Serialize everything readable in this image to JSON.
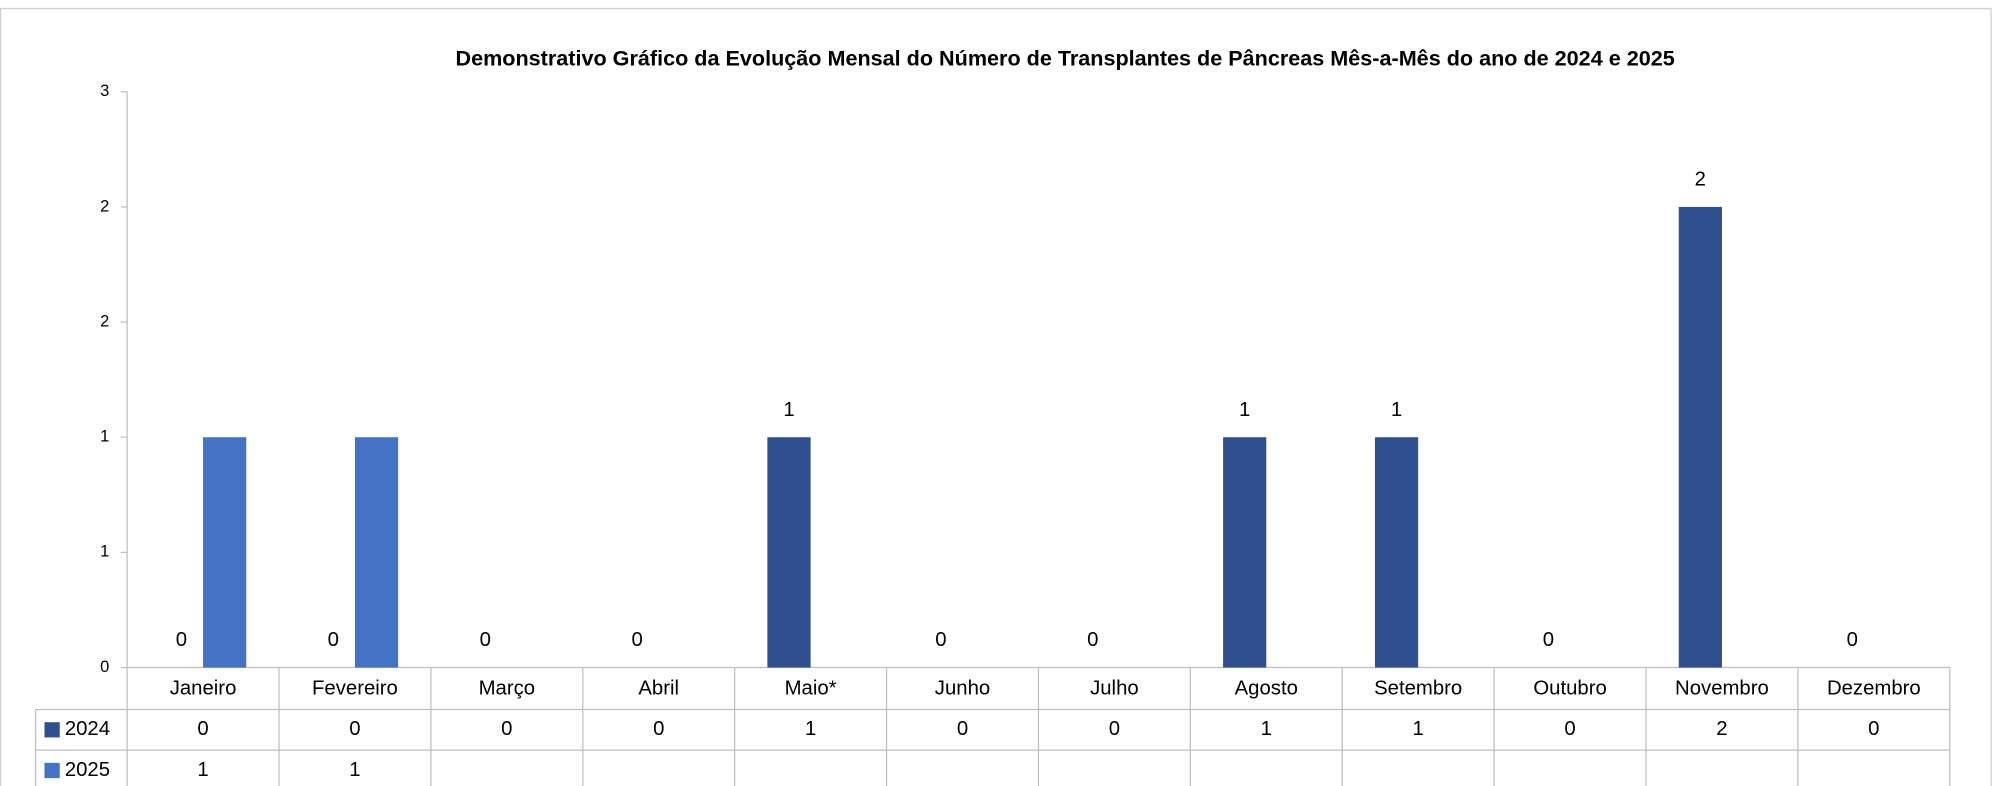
{
  "chart_data": {
    "type": "bar",
    "title": "Demonstrativo Gráfico da Evolução Mensal do Número de Transplantes de Pâncreas Mês-a-Mês do ano de  2024 e 2025",
    "categories": [
      "Janeiro",
      "Fevereiro",
      "Março",
      "Abril",
      "Maio*",
      "Junho",
      "Julho",
      "Agosto",
      "Setembro",
      "Outubro",
      "Novembro",
      "Dezembro"
    ],
    "series": [
      {
        "name": "2024",
        "color": "#2f4f8f",
        "values": [
          0,
          0,
          0,
          0,
          1,
          0,
          0,
          1,
          1,
          0,
          2,
          0
        ]
      },
      {
        "name": "2025",
        "color": "#4472c4",
        "values": [
          1,
          1,
          null,
          null,
          null,
          null,
          null,
          null,
          null,
          null,
          null,
          null
        ]
      }
    ],
    "ylim": [
      0,
      2.5
    ],
    "yticks": [
      0,
      {
        "value": 0.5,
        "label": "1"
      },
      1,
      {
        "value": 1.5,
        "label": "2"
      },
      2,
      {
        "value": 2.5,
        "label": "3"
      }
    ],
    "data_labels_series": [
      0
    ]
  }
}
